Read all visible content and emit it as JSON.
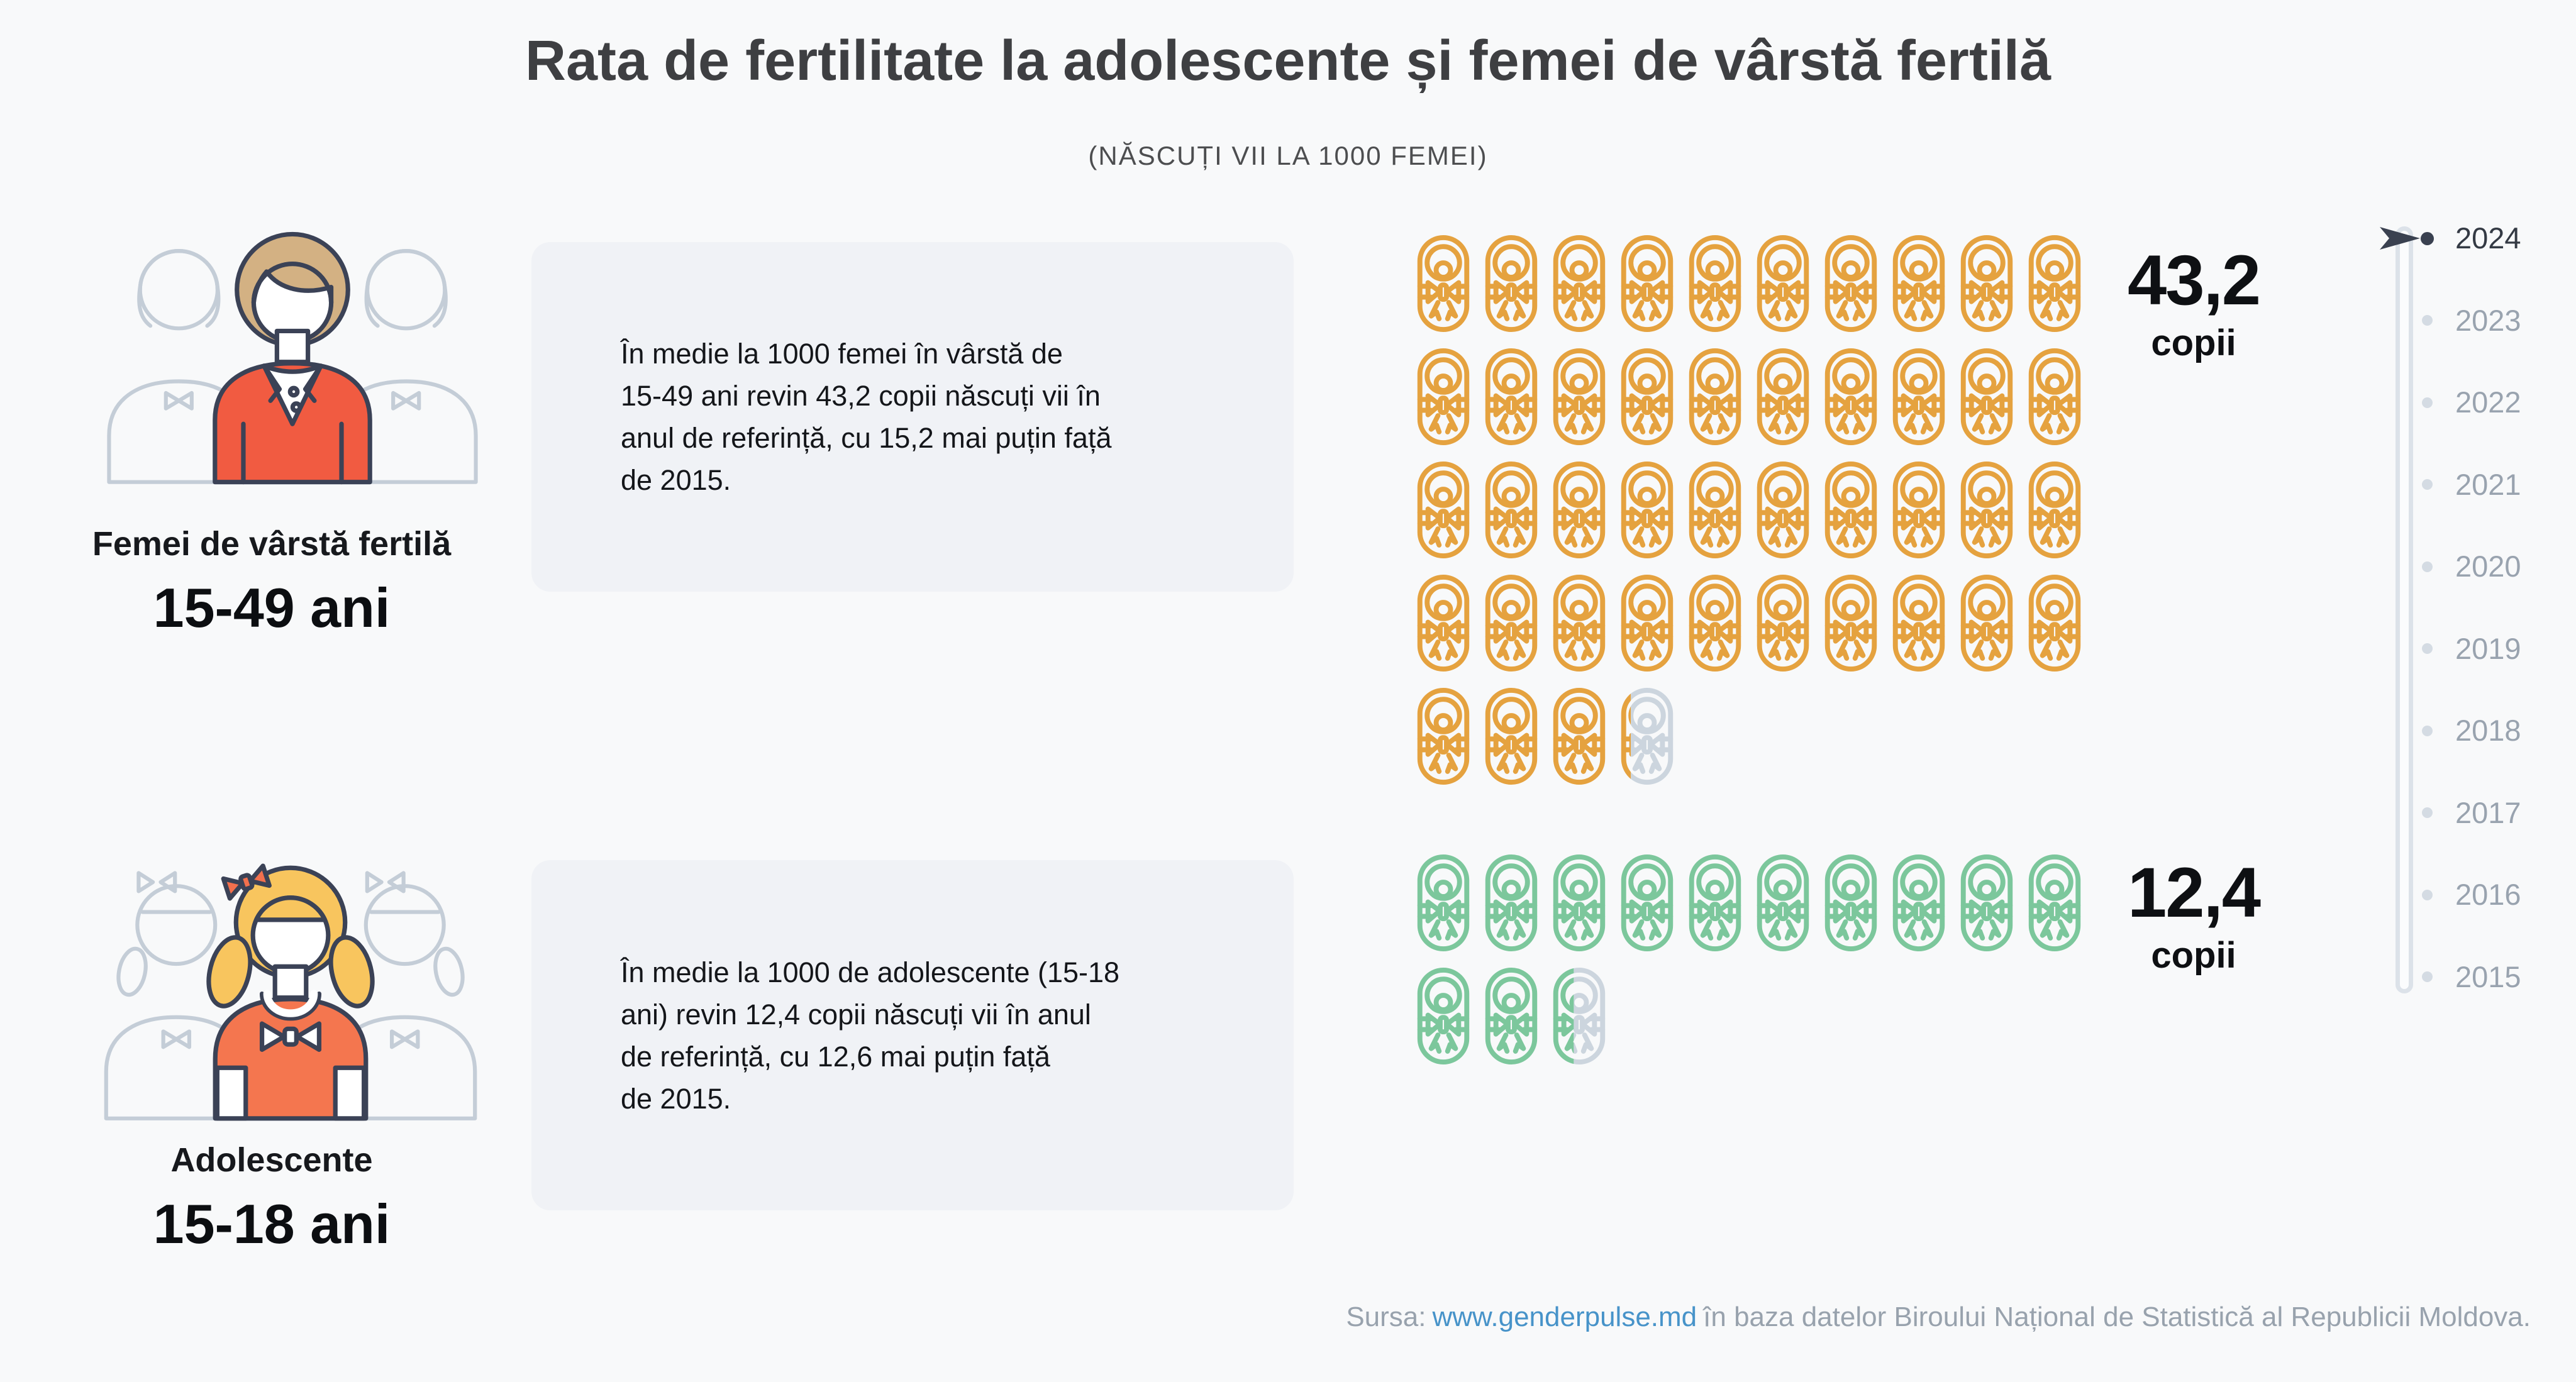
{
  "title": "Rata de fertilitate la adolescente și femei de vârstă fertilă",
  "subtitle": "(NĂSCUȚI VII LA 1000 FEMEI)",
  "groups": [
    {
      "label": "Femei de vârstă fertilă",
      "age_range": "15-49 ani",
      "description_lines": [
        "În medie la 1000 femei în vârstă de",
        "15-49 ani revin 43,2 copii născuți vii în",
        "anul de referință, cu 15,2 mai puțin față",
        "de 2015."
      ],
      "value": 43.2,
      "value_label": "43,2",
      "unit": "copii",
      "icon_color": "#e5a23f"
    },
    {
      "label": "Adolescente",
      "age_range": "15-18 ani",
      "description_lines": [
        "În medie la 1000 de adolescente (15-18",
        "ani) revin 12,4 copii născuți vii în anul",
        "de referință, cu 12,6 mai puțin față",
        "de 2015."
      ],
      "value": 12.4,
      "value_label": "12,4",
      "unit": "copii",
      "icon_color": "#7cc79c"
    }
  ],
  "pictogram": {
    "icons_per_row": 10,
    "icon": "swaddled-baby-icon",
    "remainder_color": "#ccd5de"
  },
  "timeline": {
    "active_year": "2024",
    "years": [
      "2024",
      "2023",
      "2022",
      "2021",
      "2020",
      "2019",
      "2018",
      "2017",
      "2016",
      "2015"
    ],
    "active_color": "#3a4150",
    "inactive_color": "#99a3af"
  },
  "footer": {
    "prefix": "Sursa:",
    "link": "www.genderpulse.md",
    "suffix": "în baza datelor Biroului Național de Statistică al Republicii Moldova.",
    "link_color": "#4793c9"
  },
  "chart_data": {
    "type": "pictogram",
    "title": "Rata de fertilitate la adolescente și femei de vârstă fertilă",
    "subtitle": "Născuți vii la 1000 femei",
    "categories": [
      "Femei de vârstă fertilă (15-49 ani)",
      "Adolescente (15-18 ani)"
    ],
    "values": [
      43.2,
      12.4
    ],
    "unit": "copii născuți vii la 1000 femei",
    "reference_year": 2024,
    "change_vs_2015": [
      -15.2,
      -12.6
    ],
    "icons_per_row": 10,
    "icon_value": 1,
    "timeline_years": [
      2024,
      2023,
      2022,
      2021,
      2020,
      2019,
      2018,
      2017,
      2016,
      2015
    ],
    "series_colors": [
      "#e5a23f",
      "#7cc79c"
    ],
    "remainder_color": "#ccd5de",
    "legend_position": "none",
    "grid": false
  }
}
